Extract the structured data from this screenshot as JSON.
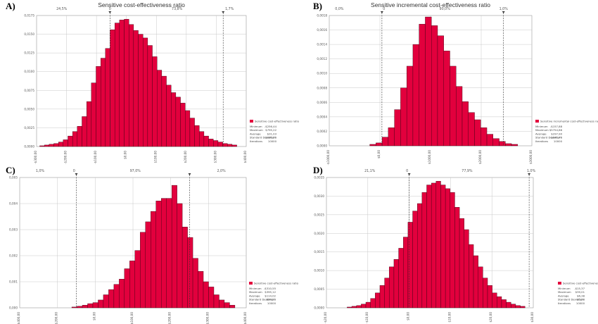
{
  "colors": {
    "bar": "#e2003d",
    "bar_edge": "#3a0010",
    "plot_bg": "#ffffff",
    "grid": "#c8c8c8",
    "axis": "#999999",
    "marker": "#333333"
  },
  "chart_data": [
    {
      "panel_label": "A)",
      "type": "bar",
      "title": "Sensitive cost-effectiveness ratio",
      "xlabel": "",
      "ylabel": "",
      "ylim": [
        0,
        0.0175
      ],
      "yticks": [
        "0,0175",
        "0,0150",
        "0,0125",
        "0,0100",
        "0,0075",
        "0,0050",
        "0,0025",
        "0,0000"
      ],
      "xticks": [
        "-$300,00",
        "-$200,00",
        "-$100,00",
        "$0,00",
        "$100,00",
        "$200,00",
        "$300,00",
        "$400,00"
      ],
      "top_labels": [
        "24,5%",
        "0",
        "73,8%",
        "1,7%"
      ],
      "values": [
        0.0001,
        0.0002,
        0.0003,
        0.0004,
        0.0006,
        0.0009,
        0.0014,
        0.002,
        0.0027,
        0.004,
        0.006,
        0.0085,
        0.0107,
        0.0118,
        0.0131,
        0.0156,
        0.0165,
        0.0169,
        0.017,
        0.0163,
        0.0155,
        0.015,
        0.0145,
        0.0135,
        0.012,
        0.0102,
        0.0094,
        0.0082,
        0.0072,
        0.0066,
        0.0058,
        0.0048,
        0.0038,
        0.0028,
        0.002,
        0.0014,
        0.001,
        0.0008,
        0.0006,
        0.0004,
        0.0003,
        0.0002
      ],
      "legend": {
        "title": "Sensitive cost-effectiveness ratio",
        "lines": [
          "Minimum",
          "Maximum",
          "Average",
          "Standard Deviation",
          "Iterations"
        ],
        "values": [
          "-$256,44",
          "$795,22",
          "$31,03",
          "$101,06",
          "10000"
        ]
      }
    },
    {
      "panel_label": "B)",
      "type": "bar",
      "title": "Sensitive incremental cost-effectiveness ratio",
      "xlabel": "",
      "ylabel": "",
      "ylim": [
        0,
        0.0018
      ],
      "yticks": [
        "0,0018",
        "0,0016",
        "0,0014",
        "0,0012",
        "0,0010",
        "0,0008",
        "0,0006",
        "0,0004",
        "0,0002",
        "0,0000"
      ],
      "xticks": [
        "-$1000,00",
        "$0,00",
        "$1000,00",
        "$2000,00",
        "$3000,00"
      ],
      "top_labels": [
        "0,0%",
        "0",
        "90,0%",
        "1,0%"
      ],
      "values": [
        2e-05,
        4e-05,
        0.00012,
        0.00025,
        0.0005,
        0.0008,
        0.0011,
        0.0014,
        0.00168,
        0.00178,
        0.00166,
        0.00152,
        0.00131,
        0.0011,
        0.00082,
        0.00061,
        0.00046,
        0.00036,
        0.00025,
        0.00016,
        0.0001,
        6e-05,
        3e-05,
        2e-05
      ],
      "legend": {
        "title": "Sensitive incremental cost-effectiveness ratio",
        "lines": [
          "Minimum",
          "Maximum",
          "Average",
          "Standard Deviation",
          "Iterations"
        ],
        "values": [
          "-$157,88",
          "$5754,86",
          "$297,90",
          "$241,46",
          "10000"
        ]
      }
    },
    {
      "panel_label": "C)",
      "type": "bar",
      "title": "",
      "xlabel": "",
      "ylabel": "",
      "ylim": [
        0,
        0.005
      ],
      "yticks": [
        "0,005",
        "0,004",
        "0,003",
        "0,002",
        "0,001",
        "0,000"
      ],
      "xticks": [
        "-$400,00",
        "-$200,00",
        "$0,00",
        "$100,00",
        "$200,00",
        "$300,00",
        "$400,00"
      ],
      "top_labels": [
        "1,0%",
        "0",
        "97,0%",
        "2,0%"
      ],
      "values": [
        3e-05,
        6e-05,
        0.0001,
        0.00016,
        0.0002,
        0.0003,
        0.0005,
        0.0007,
        0.0009,
        0.0011,
        0.0015,
        0.0018,
        0.0022,
        0.0029,
        0.0033,
        0.0037,
        0.0041,
        0.0042,
        0.0042,
        0.0047,
        0.004,
        0.0031,
        0.0027,
        0.0019,
        0.0014,
        0.001,
        0.0008,
        0.0005,
        0.0003,
        0.0002,
        0.0001
      ],
      "legend": {
        "title": "Sensitive cost-effectiveness ratio",
        "lines": [
          "Minimum",
          "Maximum",
          "Average",
          "Standard Deviation",
          "Iterations"
        ],
        "values": [
          "-$310,55",
          "$395,12",
          "$114,02",
          "$54,26",
          "10000"
        ]
      }
    },
    {
      "panel_label": "D)",
      "type": "bar",
      "title": "",
      "xlabel": "",
      "ylabel": "",
      "ylim": [
        0,
        0.0035
      ],
      "yticks": [
        "0,0035",
        "0,0030",
        "0,0025",
        "0,0020",
        "0,0015",
        "0,0010",
        "0,0005",
        "0,0000"
      ],
      "xticks": [
        "-$20,00",
        "-$10,00",
        "$0,00",
        "$10,00",
        "$20,00",
        "$30,00"
      ],
      "top_labels": [
        "21,1%",
        "0",
        "77,9%",
        "1,0%"
      ],
      "values": [
        2e-05,
        4e-05,
        6e-05,
        0.0001,
        0.00015,
        0.00025,
        0.0004,
        0.0006,
        0.0008,
        0.0011,
        0.0013,
        0.0016,
        0.0019,
        0.0023,
        0.0026,
        0.0028,
        0.0031,
        0.0033,
        0.00335,
        0.0034,
        0.0033,
        0.0032,
        0.0031,
        0.0027,
        0.0024,
        0.0021,
        0.0017,
        0.0014,
        0.0011,
        0.0008,
        0.0006,
        0.0004,
        0.0003,
        0.00022,
        0.00015,
        0.0001,
        6e-05,
        4e-05
      ],
      "legend": {
        "title": "Sensitive cost-effectiveness ratio",
        "lines": [
          "Minimum",
          "Maximum",
          "Average",
          "Standard Deviation",
          "Iterations"
        ],
        "values": [
          "-$15,37",
          "$39,01",
          "$6,38",
          "$5,38",
          "10000"
        ]
      }
    }
  ]
}
